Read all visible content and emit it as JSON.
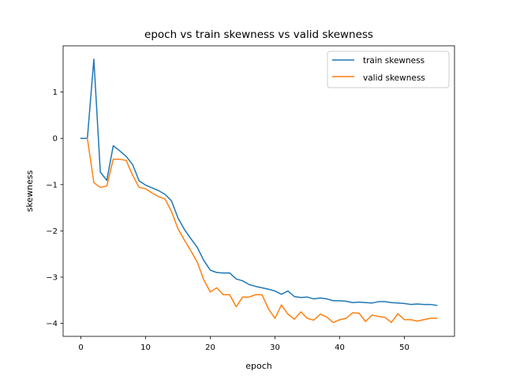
{
  "chart_data": {
    "type": "line",
    "title": "epoch vs train skewness vs valid skewness",
    "xlabel": "epoch",
    "ylabel": "skewness",
    "xlim": [
      -2.75,
      57.75
    ],
    "ylim": [
      -4.28,
      2.0
    ],
    "xticks": [
      0,
      10,
      20,
      30,
      40,
      50
    ],
    "yticks": [
      -4,
      -3,
      -2,
      -1,
      0,
      1
    ],
    "grid": false,
    "legend_position": "top-right",
    "x": [
      0,
      1,
      2,
      3,
      4,
      5,
      6,
      7,
      8,
      9,
      10,
      11,
      12,
      13,
      14,
      15,
      16,
      17,
      18,
      19,
      20,
      21,
      22,
      23,
      24,
      25,
      26,
      27,
      28,
      29,
      30,
      31,
      32,
      33,
      34,
      35,
      36,
      37,
      38,
      39,
      40,
      41,
      42,
      43,
      44,
      45,
      46,
      47,
      48,
      49,
      50,
      51,
      52,
      53,
      54,
      55
    ],
    "series": [
      {
        "name": "train skewness",
        "color": "#1f77b4",
        "values": [
          0.0,
          0.0,
          1.71,
          -0.73,
          -0.91,
          -0.16,
          -0.27,
          -0.39,
          -0.57,
          -0.92,
          -1.01,
          -1.07,
          -1.13,
          -1.21,
          -1.35,
          -1.72,
          -1.97,
          -2.17,
          -2.36,
          -2.64,
          -2.85,
          -2.9,
          -2.91,
          -2.91,
          -3.04,
          -3.08,
          -3.16,
          -3.2,
          -3.23,
          -3.26,
          -3.3,
          -3.37,
          -3.3,
          -3.42,
          -3.44,
          -3.43,
          -3.47,
          -3.45,
          -3.47,
          -3.51,
          -3.51,
          -3.52,
          -3.55,
          -3.54,
          -3.55,
          -3.56,
          -3.53,
          -3.53,
          -3.55,
          -3.56,
          -3.57,
          -3.59,
          -3.58,
          -3.59,
          -3.59,
          -3.61
        ]
      },
      {
        "name": "valid skewness",
        "color": "#ff7f0e",
        "values": [
          null,
          0.0,
          -0.96,
          -1.06,
          -1.03,
          -0.45,
          -0.45,
          -0.48,
          -0.8,
          -1.06,
          -1.09,
          -1.18,
          -1.26,
          -1.31,
          -1.58,
          -1.95,
          -2.2,
          -2.43,
          -2.68,
          -3.06,
          -3.32,
          -3.23,
          -3.38,
          -3.38,
          -3.64,
          -3.43,
          -3.43,
          -3.38,
          -3.38,
          -3.69,
          -3.89,
          -3.6,
          -3.8,
          -3.91,
          -3.75,
          -3.89,
          -3.93,
          -3.8,
          -3.86,
          -3.98,
          -3.92,
          -3.89,
          -3.77,
          -3.78,
          -3.96,
          -3.82,
          -3.85,
          -3.87,
          -3.98,
          -3.79,
          -3.92,
          -3.92,
          -3.95,
          -3.92,
          -3.89,
          -3.89
        ]
      }
    ]
  }
}
